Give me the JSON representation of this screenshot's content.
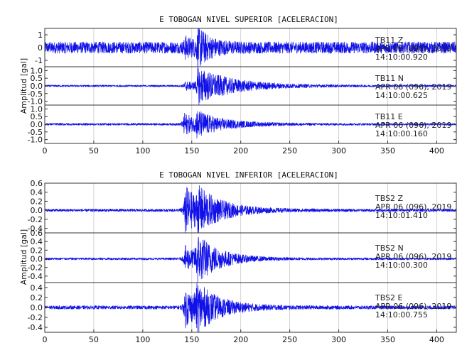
{
  "chart_data": [
    {
      "type": "line",
      "title": "E TOBOGAN NIVEL SUPERIOR [ACELERACION]",
      "ylabel": "Amplitud [gal]",
      "xlabel": "",
      "xlim": [
        0,
        420
      ],
      "x_ticks": [
        0,
        50,
        100,
        150,
        200,
        250,
        300,
        350,
        400
      ],
      "grid": true,
      "channels": [
        {
          "station": "TB11 Z",
          "date": "APR 06 (096), 2019",
          "time": "14:10:00.920",
          "ylim": [
            -1.5,
            1.5
          ],
          "y_ticks": [
            1,
            0,
            -1
          ],
          "y_tick_labels": [
            "1",
            "0",
            "-1"
          ],
          "noise": 0.45,
          "events": [
            {
              "t": 143,
              "amp": 0.6,
              "decay": 10
            },
            {
              "t": 156,
              "amp": 1.3,
              "decay": 12
            }
          ]
        },
        {
          "station": "TB11 N",
          "date": "APR 06 (096), 2019",
          "time": "14:10:00.625",
          "ylim": [
            -1.25,
            1.25
          ],
          "y_ticks": [
            1.0,
            0.5,
            0.0,
            -0.5,
            -1.0
          ],
          "y_tick_labels": [
            "1.0",
            "0.5",
            "0.0",
            "-0.5",
            "-1.0"
          ],
          "noise": 0.06,
          "events": [
            {
              "t": 143,
              "amp": 0.3,
              "decay": 14
            },
            {
              "t": 156,
              "amp": 1.1,
              "decay": 38
            }
          ]
        },
        {
          "station": "TB11 E",
          "date": "APR 06 (096), 2019",
          "time": "14:10:00.160",
          "ylim": [
            -1.25,
            1.25
          ],
          "y_ticks": [
            1.0,
            0.5,
            0.0,
            -0.5,
            -1.0
          ],
          "y_tick_labels": [
            "1.0",
            "0.5",
            "0.0",
            "-0.5",
            "-1.0"
          ],
          "noise": 0.07,
          "events": [
            {
              "t": 142,
              "amp": 0.8,
              "decay": 12
            },
            {
              "t": 155,
              "amp": 0.7,
              "decay": 30
            }
          ]
        }
      ]
    },
    {
      "type": "line",
      "title": "E TOBOGAN NIVEL INFERIOR [ACELERACION]",
      "ylabel": "Amplitud [gal]",
      "xlabel": "",
      "xlim": [
        0,
        420
      ],
      "x_ticks": [
        0,
        50,
        100,
        150,
        200,
        250,
        300,
        350,
        400
      ],
      "grid": true,
      "channels": [
        {
          "station": "TBS2 Z",
          "date": "APR 06 (096), 2019",
          "time": "14:10:01.410",
          "ylim": [
            -0.5,
            0.6
          ],
          "y_ticks": [
            0.6,
            0.4,
            0.2,
            0.0,
            -0.2,
            -0.4
          ],
          "y_tick_labels": [
            "0.6",
            "0.4",
            "0.2",
            "0.0",
            "-0.2",
            "-0.4"
          ],
          "noise": 0.03,
          "events": [
            {
              "t": 143,
              "amp": 0.55,
              "decay": 18
            },
            {
              "t": 156,
              "amp": 0.3,
              "decay": 30
            }
          ]
        },
        {
          "station": "TBS2 N",
          "date": "APR 06 (096), 2019",
          "time": "14:10:00.300",
          "ylim": [
            -0.55,
            0.6
          ],
          "y_ticks": [
            0.6,
            0.4,
            0.2,
            0.0,
            -0.2,
            -0.4
          ],
          "y_tick_labels": [
            "0.6",
            "0.4",
            "0.2",
            "0.0",
            "-0.2",
            "-0.4"
          ],
          "noise": 0.025,
          "events": [
            {
              "t": 143,
              "amp": 0.3,
              "decay": 14
            },
            {
              "t": 155,
              "amp": 0.5,
              "decay": 24
            }
          ]
        },
        {
          "station": "TBS2 E",
          "date": "APR 06 (096), 2019",
          "time": "14:10:00.755",
          "ylim": [
            -0.5,
            0.5
          ],
          "y_ticks": [
            0.4,
            0.2,
            0.0,
            -0.2,
            -0.4
          ],
          "y_tick_labels": [
            "0.4",
            "0.2",
            "0.0",
            "-0.2",
            "-0.4"
          ],
          "noise": 0.035,
          "events": [
            {
              "t": 143,
              "amp": 0.4,
              "decay": 16
            },
            {
              "t": 155,
              "amp": 0.35,
              "decay": 26
            }
          ]
        }
      ]
    }
  ]
}
